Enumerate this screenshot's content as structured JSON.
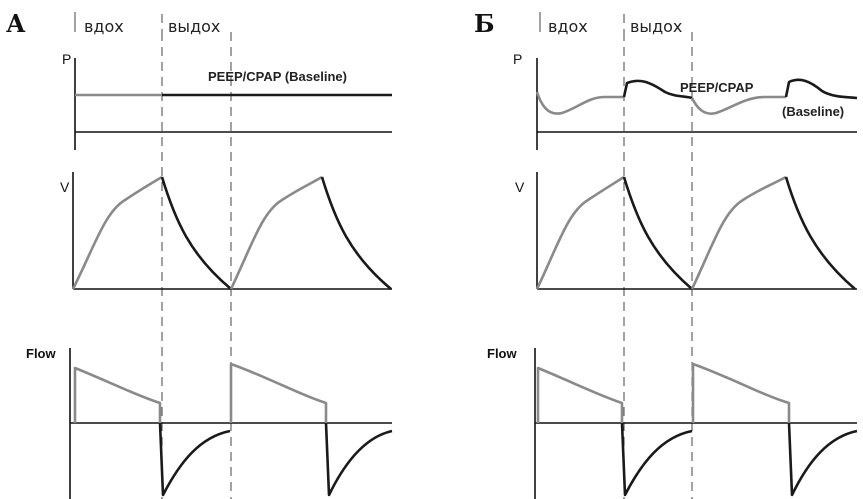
{
  "panels": [
    {
      "letter": "А",
      "phase_inhale": "вдох",
      "phase_exhale": "выдох",
      "pressure_label": "P",
      "pressure_annotation": "PEEP/CPAP (Baseline)",
      "volume_label": "V",
      "flow_label": "Flow"
    },
    {
      "letter": "Б",
      "phase_inhale": "вдох",
      "phase_exhale": "выдох",
      "pressure_label": "P",
      "pressure_annotation": "PEEP/CPAP",
      "pressure_annotation_2": "(Baseline)",
      "volume_label": "V",
      "flow_label": "Flow"
    }
  ],
  "colors": {
    "inspiration": "#8a8a8a",
    "expiration": "#1a1a1a"
  }
}
